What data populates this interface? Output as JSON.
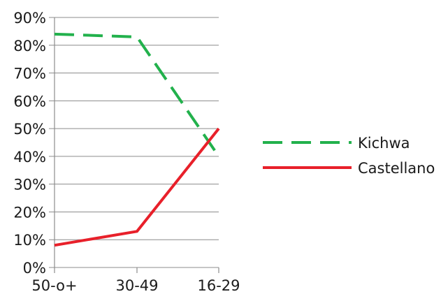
{
  "chart_data": {
    "type": "line",
    "title": "",
    "xlabel": "",
    "ylabel": "",
    "categories": [
      "50-o+",
      "30-49",
      "16-29"
    ],
    "yticks": [
      "0%",
      "10%",
      "20%",
      "30%",
      "40%",
      "50%",
      "60%",
      "70%",
      "80%",
      "90%"
    ],
    "ylim": [
      0,
      90
    ],
    "grid": true,
    "legend_position": "right",
    "series": [
      {
        "name": "Kichwa",
        "values": [
          84,
          83,
          40
        ],
        "color": "#22b14c",
        "style": "dashed"
      },
      {
        "name": "Castellano",
        "values": [
          8,
          13,
          50
        ],
        "color": "#e8202a",
        "style": "solid"
      }
    ]
  }
}
